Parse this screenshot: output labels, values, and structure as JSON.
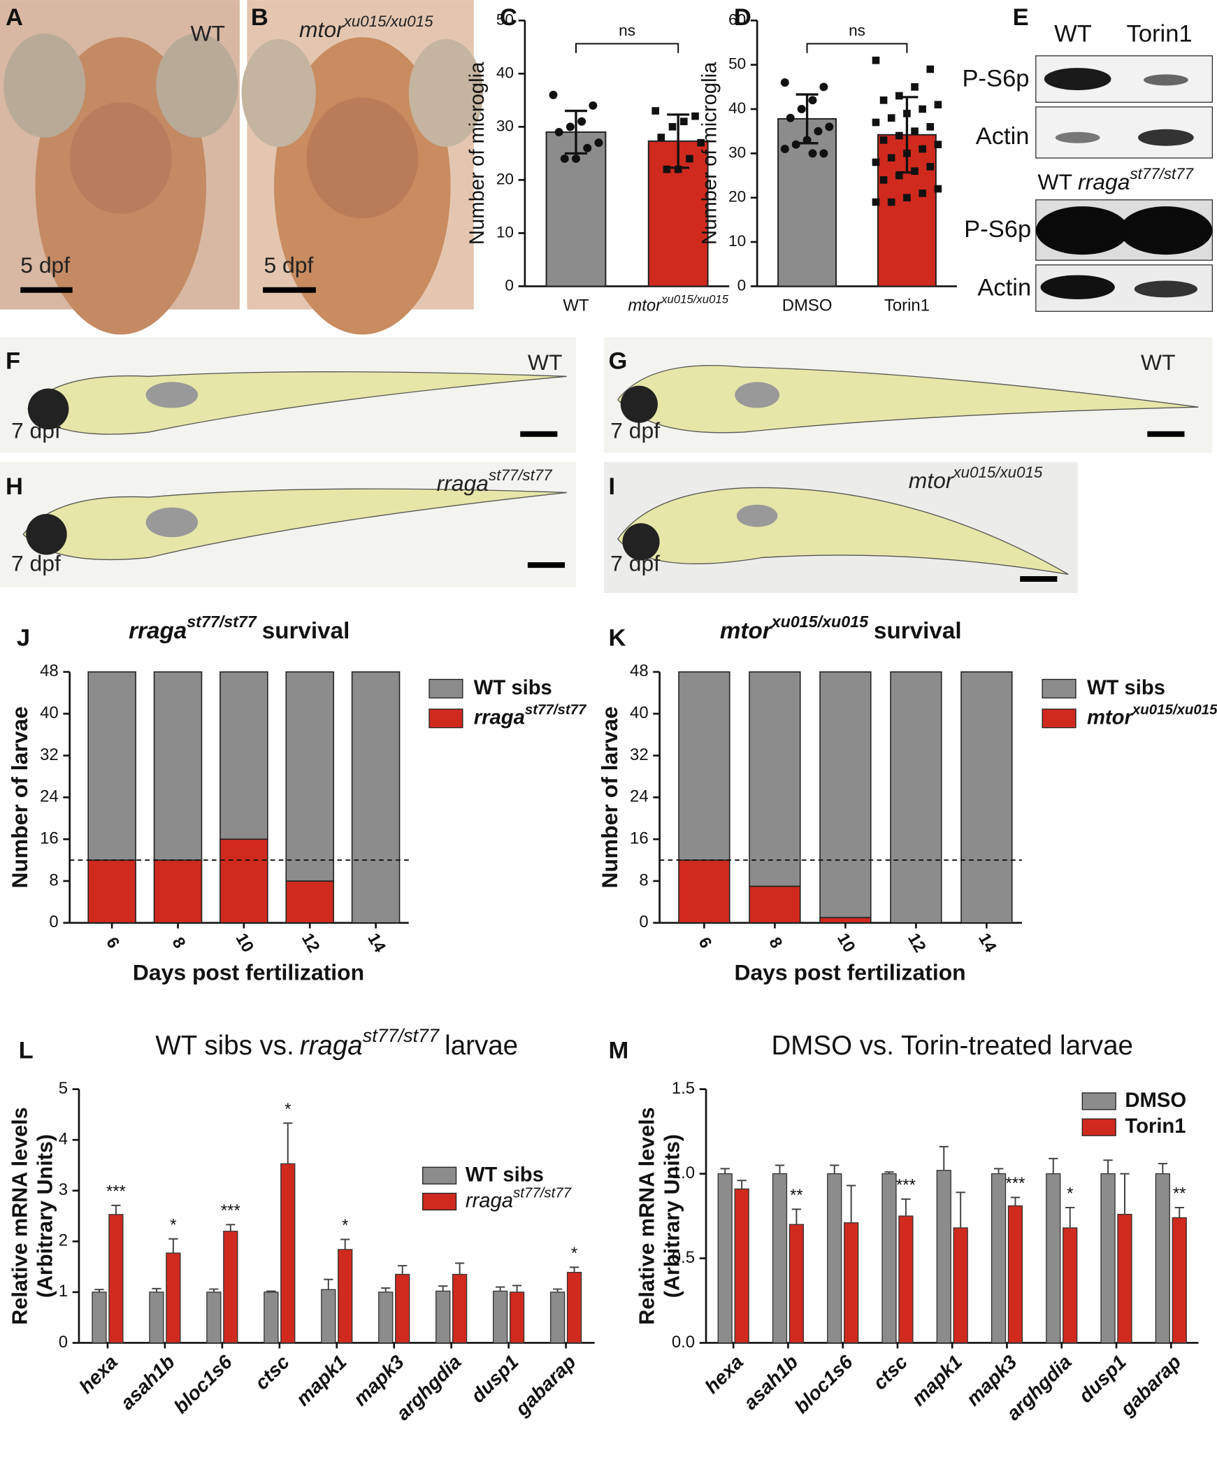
{
  "panel_labels": [
    "A",
    "B",
    "C",
    "D",
    "E",
    "F",
    "G",
    "H",
    "I",
    "J",
    "K",
    "L",
    "M"
  ],
  "images": [
    {
      "label": "WT",
      "scale": "5 dpf"
    },
    {
      "label": "mtor",
      "label_sup": "xu015/xu015",
      "scale": "5 dpf"
    },
    {
      "label": "WT",
      "stage": "7 dpf"
    },
    {
      "label": "WT",
      "stage": "7 dpf"
    },
    {
      "label": "rraga",
      "label_sup": "st77/st77",
      "stage": "7 dpf"
    },
    {
      "label": "mtor",
      "label_sup": "xu015/xu015",
      "stage": "7 dpf"
    }
  ],
  "blot": {
    "top_lanes": [
      "WT",
      "Torin1"
    ],
    "top_rows": [
      "P-S6p",
      "Actin"
    ],
    "bottom_prefix": "WT",
    "bottom_gene": "rraga",
    "bottom_sup": "st77/st77",
    "bottom_rows": [
      "P-S6p",
      "Actin"
    ]
  },
  "chart_data": [
    {
      "type": "bar_scatter",
      "ylabel": "Number of microglia",
      "categories": [
        "WT",
        "mtor"
      ],
      "category_superscripts": [
        null,
        "xu015/xu015"
      ],
      "values": [
        29,
        27.3
      ],
      "errors": [
        4,
        5
      ],
      "points": [
        [
          36,
          34,
          31,
          30,
          29,
          27,
          26,
          24,
          24
        ],
        [
          33,
          32,
          31,
          30,
          28,
          27,
          24,
          22,
          22
        ]
      ],
      "colors": [
        "#8c8c8c",
        "#d02a1e"
      ],
      "ylim": [
        0,
        50
      ],
      "yticks": [
        0,
        10,
        20,
        30,
        40,
        50
      ],
      "annotation": "ns"
    },
    {
      "type": "bar_scatter",
      "ylabel": "Number of microglia",
      "categories": [
        "DMSO",
        "Torin1"
      ],
      "category_superscripts": [
        null,
        null
      ],
      "values": [
        37.8,
        34.2
      ],
      "errors": [
        5.5,
        8.5
      ],
      "points": [
        [
          46,
          45,
          42,
          40,
          38,
          36,
          35,
          33,
          32,
          31,
          30,
          30
        ],
        [
          51,
          49,
          45,
          43,
          42,
          41,
          40,
          39,
          38,
          37,
          36,
          35,
          34,
          33,
          32,
          31,
          30,
          29,
          28,
          27,
          26,
          25,
          24,
          22,
          21,
          20,
          19,
          19
        ]
      ],
      "colors": [
        "#8c8c8c",
        "#d02a1e"
      ],
      "ylim": [
        0,
        60
      ],
      "yticks": [
        0,
        10,
        20,
        30,
        40,
        50,
        60
      ],
      "annotation": "ns"
    },
    {
      "type": "stacked_bar",
      "title_gene": "rraga",
      "title_sup": "st77/st77",
      "title": "survival",
      "xlabel": "Days post fertilization",
      "ylabel": "Number of larvae",
      "categories": [
        "6",
        "8",
        "10",
        "12",
        "14"
      ],
      "series": [
        {
          "name": "rraga",
          "name_sup": "st77/st77",
          "color": "#d02a1e",
          "values": [
            12,
            12,
            16,
            8,
            0
          ]
        },
        {
          "name": "WT sibs",
          "color": "#8c8c8c",
          "values": [
            36,
            36,
            32,
            40,
            48
          ]
        }
      ],
      "ylim": [
        0,
        48
      ],
      "yticks": [
        0,
        8,
        16,
        24,
        32,
        40,
        48
      ],
      "reference_line": 12
    },
    {
      "type": "stacked_bar",
      "title_gene": "mtor",
      "title_sup": "xu015/xu015",
      "title": "survival",
      "xlabel": "Days post fertilization",
      "ylabel": "Number of larvae",
      "categories": [
        "6",
        "8",
        "10",
        "12",
        "14"
      ],
      "series": [
        {
          "name": "mtor",
          "name_sup": "xu015/xu015",
          "color": "#d02a1e",
          "values": [
            12,
            7,
            1,
            0,
            0
          ]
        },
        {
          "name": "WT sibs",
          "color": "#8c8c8c",
          "values": [
            36,
            41,
            47,
            48,
            48
          ]
        }
      ],
      "ylim": [
        0,
        48
      ],
      "yticks": [
        0,
        8,
        16,
        24,
        32,
        40,
        48
      ],
      "reference_line": 12
    },
    {
      "type": "grouped_bar",
      "title_prefix": "WT sibs vs.",
      "title_gene": "rraga",
      "title_sup": "st77/st77",
      "title": "larvae",
      "ylabel": [
        "Relative mRNA levels",
        "(Arbitrary Units)"
      ],
      "categories": [
        "hexa",
        "asah1b",
        "bloc1s6",
        "ctsc",
        "mapk1",
        "mapk3",
        "arghgdia",
        "dusp1",
        "gabarap"
      ],
      "series": [
        {
          "name": "WT sibs",
          "color": "#8c8c8c",
          "values": [
            1,
            1,
            1,
            1,
            1.05,
            1,
            1.02,
            1.02,
            1
          ],
          "errors": [
            0.05,
            0.07,
            0.06,
            0.02,
            0.2,
            0.08,
            0.1,
            0.08,
            0.06
          ]
        },
        {
          "name": "rraga",
          "name_sup": "st77/st77",
          "color": "#d02a1e",
          "values": [
            2.53,
            1.77,
            2.2,
            3.53,
            1.84,
            1.35,
            1.35,
            1.0,
            1.39
          ],
          "errors": [
            0.18,
            0.28,
            0.13,
            0.8,
            0.2,
            0.17,
            0.22,
            0.13,
            0.1
          ]
        }
      ],
      "significance": [
        "***",
        "*",
        "***",
        "*",
        "*",
        null,
        null,
        null,
        "*"
      ],
      "ylim": [
        0,
        5
      ],
      "yticks": [
        0,
        1,
        2,
        3,
        4,
        5
      ]
    },
    {
      "type": "grouped_bar",
      "title": "DMSO vs. Torin-treated larvae",
      "ylabel": [
        "Relative mRNA levels",
        "(Arbitrary Units)"
      ],
      "categories": [
        "hexa",
        "asah1b",
        "bloc1s6",
        "ctsc",
        "mapk1",
        "mapk3",
        "arghgdia",
        "dusp1",
        "gabarap"
      ],
      "series": [
        {
          "name": "DMSO",
          "color": "#8c8c8c",
          "values": [
            1,
            1,
            1,
            1,
            1.02,
            1,
            1,
            1,
            1
          ],
          "errors": [
            0.03,
            0.05,
            0.05,
            0.01,
            0.14,
            0.03,
            0.09,
            0.08,
            0.06
          ]
        },
        {
          "name": "Torin1",
          "color": "#d02a1e",
          "values": [
            0.91,
            0.7,
            0.71,
            0.75,
            0.68,
            0.81,
            0.68,
            0.76,
            0.74
          ],
          "errors": [
            0.05,
            0.09,
            0.22,
            0.1,
            0.21,
            0.05,
            0.12,
            0.24,
            0.06
          ]
        }
      ],
      "significance": [
        null,
        "**",
        null,
        "***",
        null,
        "***",
        "*",
        null,
        "**"
      ],
      "ylim": [
        0,
        1.5
      ],
      "yticks": [
        {
          "value": 0,
          "label": "0.0"
        },
        0.5,
        {
          "value": 1,
          "label": "1.0"
        },
        1.5
      ]
    }
  ]
}
